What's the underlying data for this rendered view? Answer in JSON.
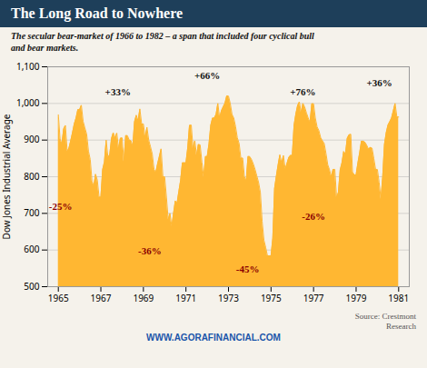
{
  "chart_data": {
    "type": "area",
    "title": "The Long Road to Nowhere",
    "subtitle": "The secular bear-market of 1966 to 1982 – a span that included four cyclical bull\nand bear markets.",
    "ylabel": "Dow Jones Industrial Average",
    "source": "Source: Crestmont\nResearch",
    "watermark": "WWW.AGORAFINANCIAL.COM",
    "color": "#FFB732",
    "grid": true,
    "xlim": [
      1964.5,
      1981.5
    ],
    "xticks": [
      1965,
      1967,
      1969,
      1971,
      1973,
      1975,
      1977,
      1979,
      1981
    ],
    "ylim": [
      500,
      1100
    ],
    "yticks": [
      500,
      600,
      700,
      800,
      900,
      {
        "value": 1000,
        "label": "1,000"
      },
      {
        "value": 1100,
        "label": "1,100"
      }
    ],
    "annotations": [
      {
        "label": "+33%",
        "x": 1967.8,
        "y": 1030,
        "color": "#111111"
      },
      {
        "label": "+66%",
        "x": 1972.0,
        "y": 1075,
        "color": "#111111"
      },
      {
        "label": "+76%",
        "x": 1976.5,
        "y": 1030,
        "color": "#111111"
      },
      {
        "label": "+36%",
        "x": 1980.1,
        "y": 1055,
        "color": "#111111"
      },
      {
        "label": "-25%",
        "x": 1965.1,
        "y": 718,
        "color": "#8b0000"
      },
      {
        "label": "-36%",
        "x": 1969.3,
        "y": 598,
        "color": "#8b0000"
      },
      {
        "label": "-45%",
        "x": 1973.9,
        "y": 548,
        "color": "#8b0000"
      },
      {
        "label": "-26%",
        "x": 1977.0,
        "y": 690,
        "color": "#8b0000"
      }
    ],
    "x": [
      1965.0,
      1965.083,
      1965.167,
      1965.25,
      1965.333,
      1965.417,
      1965.5,
      1965.583,
      1965.667,
      1965.75,
      1965.833,
      1965.917,
      1966.0,
      1966.083,
      1966.167,
      1966.25,
      1966.333,
      1966.417,
      1966.5,
      1966.583,
      1966.667,
      1966.75,
      1966.833,
      1966.917,
      1967.0,
      1967.083,
      1967.167,
      1967.25,
      1967.333,
      1967.417,
      1967.5,
      1967.583,
      1967.667,
      1967.75,
      1967.833,
      1967.917,
      1968.0,
      1968.083,
      1968.167,
      1968.25,
      1968.333,
      1968.417,
      1968.5,
      1968.583,
      1968.667,
      1968.75,
      1968.833,
      1968.917,
      1969.0,
      1969.083,
      1969.167,
      1969.25,
      1969.333,
      1969.417,
      1969.5,
      1969.583,
      1969.667,
      1969.75,
      1969.833,
      1969.917,
      1970.0,
      1970.083,
      1970.167,
      1970.25,
      1970.333,
      1970.417,
      1970.5,
      1970.583,
      1970.667,
      1970.75,
      1970.833,
      1970.917,
      1971.0,
      1971.083,
      1971.167,
      1971.25,
      1971.333,
      1971.417,
      1971.5,
      1971.583,
      1971.667,
      1971.75,
      1971.833,
      1971.917,
      1972.0,
      1972.083,
      1972.167,
      1972.25,
      1972.333,
      1972.417,
      1972.5,
      1972.583,
      1972.667,
      1972.75,
      1972.833,
      1972.917,
      1973.0,
      1973.083,
      1973.167,
      1973.25,
      1973.333,
      1973.417,
      1973.5,
      1973.583,
      1973.667,
      1973.75,
      1973.833,
      1973.917,
      1974.0,
      1974.083,
      1974.167,
      1974.25,
      1974.333,
      1974.417,
      1974.5,
      1974.583,
      1974.667,
      1974.75,
      1974.833,
      1974.917,
      1975.0,
      1975.083,
      1975.167,
      1975.25,
      1975.333,
      1975.417,
      1975.5,
      1975.583,
      1975.667,
      1975.75,
      1975.833,
      1975.917,
      1976.0,
      1976.083,
      1976.167,
      1976.25,
      1976.333,
      1976.417,
      1976.5,
      1976.583,
      1976.667,
      1976.75,
      1976.833,
      1976.917,
      1977.0,
      1977.083,
      1977.167,
      1977.25,
      1977.333,
      1977.417,
      1977.5,
      1977.583,
      1977.667,
      1977.75,
      1977.833,
      1977.917,
      1978.0,
      1978.083,
      1978.167,
      1978.25,
      1978.333,
      1978.417,
      1978.5,
      1978.583,
      1978.667,
      1978.75,
      1978.833,
      1978.917,
      1979.0,
      1979.083,
      1979.167,
      1979.25,
      1979.333,
      1979.417,
      1979.5,
      1979.583,
      1979.667,
      1979.75,
      1979.833,
      1979.917,
      1980.0,
      1980.083,
      1980.167,
      1980.25,
      1980.333,
      1980.417,
      1980.5,
      1980.583,
      1980.667,
      1980.75,
      1980.833,
      1980.917,
      1981.0
    ],
    "values": [
      969,
      903,
      889,
      930,
      940,
      868,
      878,
      898,
      920,
      944,
      960,
      983,
      983,
      995,
      951,
      933,
      916,
      870,
      847,
      788,
      774,
      807,
      791,
      744,
      744,
      819,
      840,
      900,
      852,
      860,
      904,
      920,
      906,
      919,
      876,
      905,
      906,
      840,
      912,
      912,
      900,
      898,
      883,
      950,
      968,
      952,
      985,
      944,
      944,
      905,
      935,
      900,
      882,
      862,
      820,
      812,
      835,
      855,
      876,
      800,
      800,
      744,
      683,
      700,
      663,
      700,
      734,
      728,
      760,
      790,
      838,
      838,
      838,
      878,
      940,
      941,
      877,
      898,
      858,
      888,
      887,
      840,
      797,
      855,
      855,
      889,
      940,
      960,
      960,
      970,
      1000,
      960,
      980,
      990,
      1000,
      1020,
      1020,
      1000,
      970,
      960,
      937,
      906,
      891,
      850,
      851,
      800,
      788,
      855,
      855,
      847,
      835,
      820,
      802,
      784,
      757,
      678,
      627,
      607,
      584,
      584,
      584,
      632,
      768,
      801,
      832,
      860,
      836,
      858,
      820,
      836,
      852,
      858,
      858,
      940,
      971,
      994,
      1004,
      975,
      1000,
      990,
      974,
      960,
      948,
      999,
      999,
      960,
      936,
      926,
      907,
      898,
      891,
      864,
      833,
      819,
      800,
      820,
      820,
      742,
      757,
      818,
      837,
      869,
      862,
      905,
      914,
      916,
      813,
      805,
      805,
      837,
      865,
      897,
      897,
      894,
      886,
      875,
      880,
      878,
      850,
      820,
      820,
      785,
      738,
      800,
      888,
      920,
      941,
      950,
      960,
      980,
      1000,
      963,
      963
    ]
  }
}
